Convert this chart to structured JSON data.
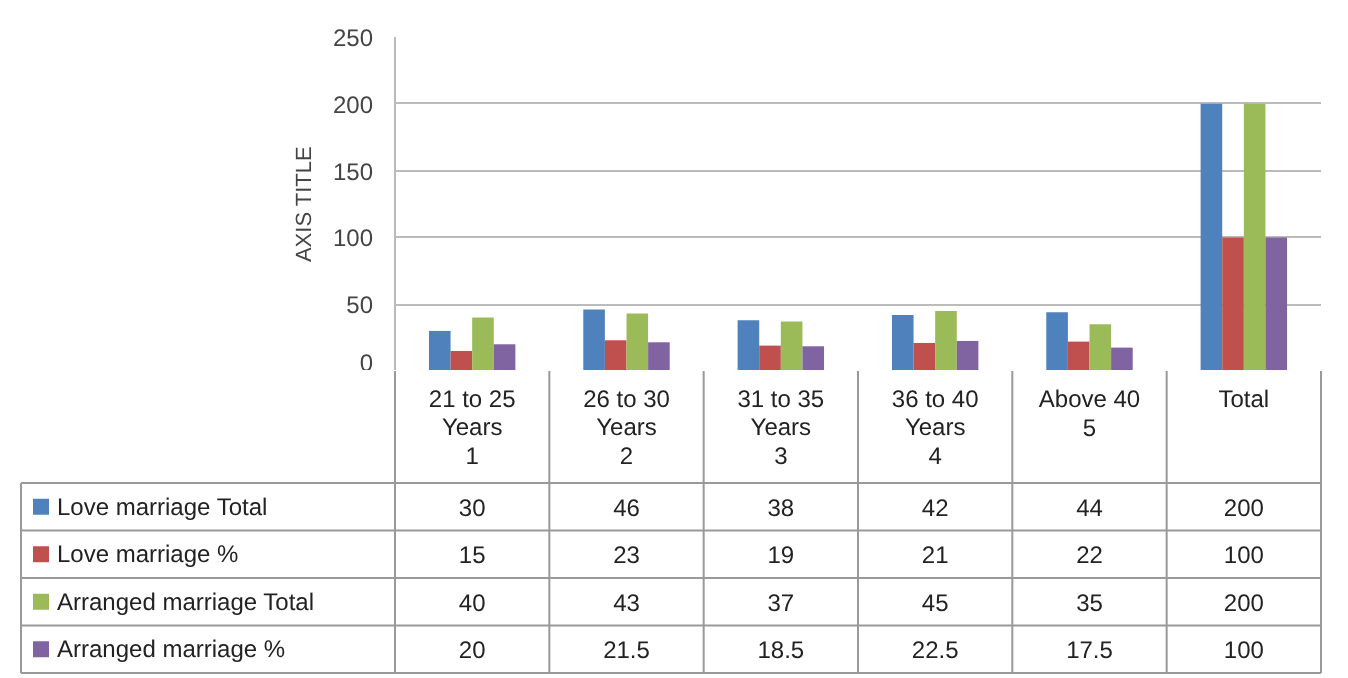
{
  "chart_data": {
    "type": "bar",
    "ylabel": "AXIS TITLE",
    "categories": [
      "21 to 25 Years\n1",
      "26 to 30 Years\n2",
      "31 to 35 Years\n3",
      "36 to 40 Years\n4",
      "Above 40\n5",
      "Total"
    ],
    "series": [
      {
        "name": "Love marriage Total",
        "color": "#4f81bd",
        "values": [
          30,
          46,
          38,
          42,
          44,
          200
        ],
        "value_labels": [
          "30",
          "46",
          "38",
          "42",
          "44",
          "200"
        ]
      },
      {
        "name": "Love marriage %",
        "color": "#c0504d",
        "values": [
          15,
          23,
          19,
          21,
          22,
          100
        ],
        "value_labels": [
          "15",
          "23",
          "19",
          "21",
          "22",
          "100"
        ]
      },
      {
        "name": "Arranged marriage Total",
        "color": "#9bbb59",
        "values": [
          40,
          43,
          37,
          45,
          35,
          200
        ],
        "value_labels": [
          "40",
          "43",
          "37",
          "45",
          "35",
          "200"
        ]
      },
      {
        "name": "Arranged marriage %",
        "color": "#8064a2",
        "values": [
          20,
          21.5,
          18.5,
          22.5,
          17.5,
          100
        ],
        "value_labels": [
          "20",
          "21.5",
          "18.5",
          "22.5",
          "17.5",
          "100"
        ]
      }
    ],
    "ylim": [
      0,
      250
    ],
    "yticks": [
      0,
      50,
      100,
      150,
      200,
      250
    ],
    "grid": "y",
    "legend": "bottom left"
  }
}
